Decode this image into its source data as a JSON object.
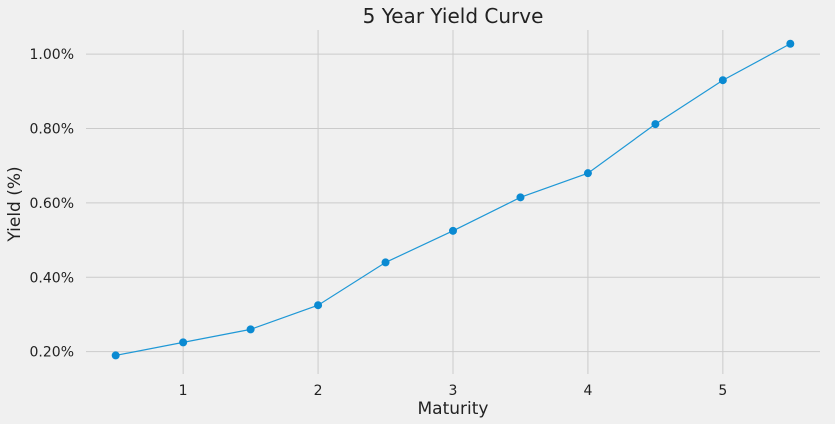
{
  "chart_data": {
    "type": "line",
    "title": "5 Year Yield Curve",
    "xlabel": "Maturity",
    "ylabel": "Yield (%)",
    "x": [
      0.5,
      1.0,
      1.5,
      2.0,
      2.5,
      3.0,
      3.5,
      4.0,
      4.5,
      5.0,
      5.5
    ],
    "series": [
      {
        "values": [
          0.19,
          0.225,
          0.26,
          0.325,
          0.44,
          0.525,
          0.615,
          0.68,
          0.812,
          0.93,
          1.028
        ]
      }
    ],
    "xlim": [
      0.28,
      5.72
    ],
    "ylim": [
      0.14,
      1.065
    ],
    "xticks": [
      1,
      2,
      3,
      4,
      5
    ],
    "xtick_labels": [
      "1",
      "2",
      "3",
      "4",
      "5"
    ],
    "yticks": [
      0.2,
      0.4,
      0.6,
      0.8,
      1.0
    ],
    "ytick_labels": [
      "0.20%",
      "0.40%",
      "0.60%",
      "0.80%",
      "1.00%"
    ],
    "grid": true,
    "line_color": "#1f98d6",
    "marker_color": "#0a8ad2",
    "background": "#f0f0f0",
    "grid_color": "#cbcbcb"
  }
}
